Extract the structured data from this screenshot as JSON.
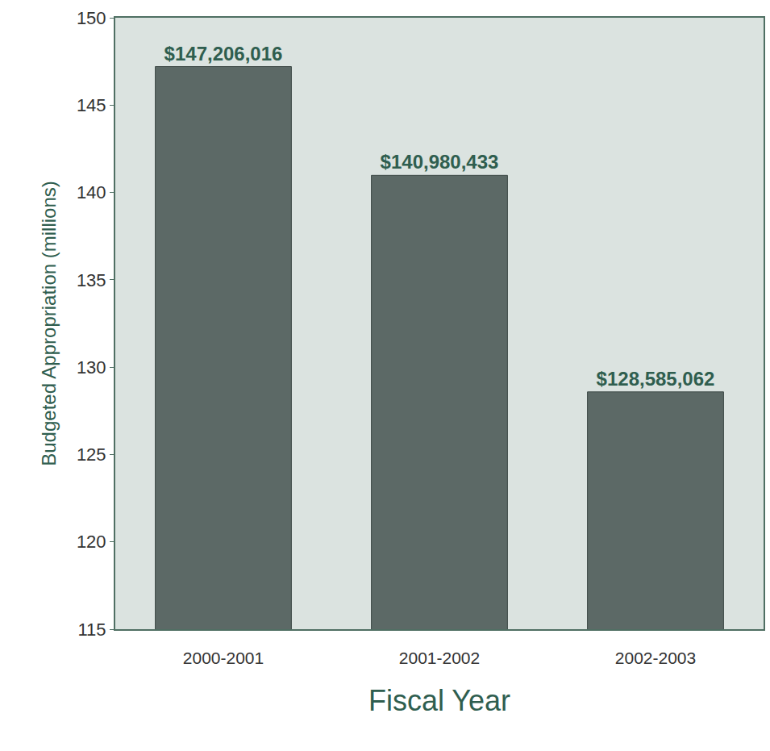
{
  "chart_data": {
    "type": "bar",
    "x_label": "Fiscal Year",
    "y_label": "Budgeted Appropriation (millions)",
    "categories": [
      "2000-2001",
      "2001-2002",
      "2002-2003"
    ],
    "values": [
      147.206016,
      140.980433,
      128.585062
    ],
    "value_labels": [
      "$147,206,016",
      "$140,980,433",
      "$128,585,062"
    ],
    "data_labels": true,
    "color": "#5c6966",
    "ylim": [
      115,
      150
    ],
    "yticks": [
      115,
      120,
      125,
      130,
      135,
      140,
      145,
      150
    ],
    "grid": false
  }
}
